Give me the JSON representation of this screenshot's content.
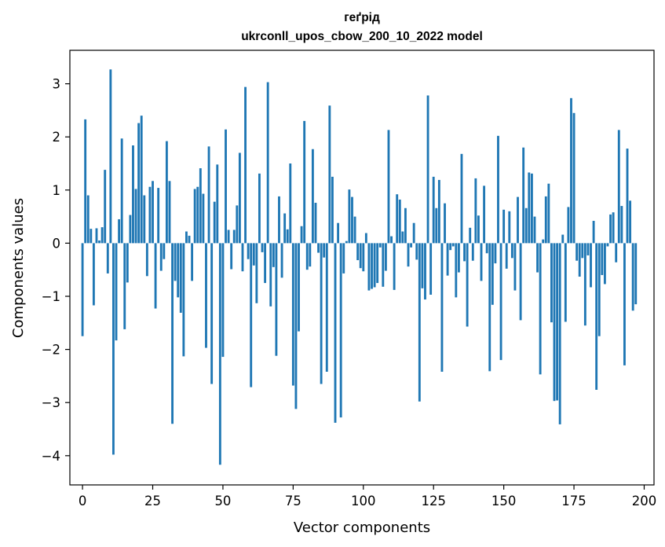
{
  "chart_data": {
    "type": "bar",
    "title_line1": "геґрід",
    "title_line2": "ukrconll_upos_cbow_200_10_2022 model",
    "xlabel": "Vector components",
    "ylabel": "Components values",
    "xlim": [
      -4.5,
      203.5
    ],
    "ylim": [
      -4.55,
      3.63
    ],
    "xticks": [
      0,
      25,
      50,
      75,
      100,
      125,
      150,
      175,
      200
    ],
    "xtick_labels": [
      "0",
      "25",
      "50",
      "75",
      "100",
      "125",
      "150",
      "175",
      "200"
    ],
    "yticks": [
      3,
      2,
      1,
      0,
      -1,
      -2,
      -3,
      -4
    ],
    "ytick_labels": [
      "3",
      "2",
      "1",
      "0",
      "−1",
      "−2",
      "−3",
      "−4"
    ],
    "bar_color": "#1f77b4",
    "grid": false,
    "values": [
      -1.75,
      2.33,
      0.9,
      0.27,
      -1.17,
      0.28,
      0.05,
      0.3,
      1.38,
      -0.57,
      3.27,
      -3.98,
      -1.83,
      0.45,
      1.97,
      -1.62,
      -0.74,
      0.53,
      1.84,
      1.02,
      2.26,
      2.4,
      0.9,
      -0.62,
      1.06,
      1.17,
      -1.23,
      1.04,
      -0.52,
      -0.3,
      1.92,
      1.17,
      -3.4,
      -0.71,
      -1.02,
      -1.31,
      -2.13,
      0.22,
      0.14,
      -0.71,
      1.02,
      1.06,
      1.41,
      0.93,
      -1.97,
      1.82,
      -2.65,
      0.78,
      1.48,
      -4.17,
      -2.14,
      2.14,
      0.25,
      -0.49,
      0.25,
      0.71,
      1.7,
      -0.53,
      2.94,
      -0.3,
      -2.71,
      -0.42,
      -1.13,
      1.31,
      -0.17,
      -0.75,
      3.03,
      -1.19,
      -0.45,
      -2.12,
      0.88,
      -0.65,
      0.56,
      0.26,
      1.5,
      -2.68,
      -3.12,
      -1.66,
      0.32,
      2.3,
      -0.5,
      -0.44,
      1.77,
      0.76,
      -0.18,
      -2.65,
      -0.27,
      -2.42,
      2.59,
      1.25,
      -3.38,
      0.38,
      -3.28,
      -0.57,
      0.04,
      1.01,
      0.87,
      0.5,
      -0.32,
      -0.47,
      -0.53,
      0.19,
      -0.89,
      -0.86,
      -0.83,
      -0.75,
      -0.08,
      -0.82,
      -0.52,
      2.13,
      0.13,
      -0.88,
      0.92,
      0.82,
      0.22,
      0.66,
      -0.44,
      -0.08,
      0.38,
      -0.31,
      -2.98,
      -0.85,
      -1.06,
      2.78,
      -0.97,
      1.25,
      0.66,
      1.19,
      -2.42,
      0.75,
      -0.61,
      -0.13,
      -0.06,
      -1.02,
      -0.55,
      1.68,
      -0.34,
      -1.57,
      0.29,
      -0.33,
      1.22,
      0.52,
      -0.71,
      1.08,
      -0.19,
      -2.41,
      -1.16,
      -0.38,
      2.02,
      -2.2,
      0.63,
      -0.48,
      0.6,
      -0.28,
      -0.89,
      0.87,
      -1.45,
      1.8,
      0.66,
      1.33,
      1.31,
      0.5,
      -0.55,
      -2.47,
      0.07,
      0.88,
      1.12,
      -1.49,
      -2.97,
      -2.96,
      -3.41,
      0.16,
      -1.48,
      0.68,
      2.73,
      2.45,
      -0.33,
      -0.63,
      -0.28,
      -1.55,
      -0.23,
      -0.83,
      0.42,
      -2.76,
      -1.75,
      -0.6,
      -0.77,
      -0.06,
      0.54,
      0.58,
      -0.36,
      2.13,
      0.7,
      -2.3,
      1.78,
      0.8,
      -1.27,
      -1.15
    ]
  }
}
